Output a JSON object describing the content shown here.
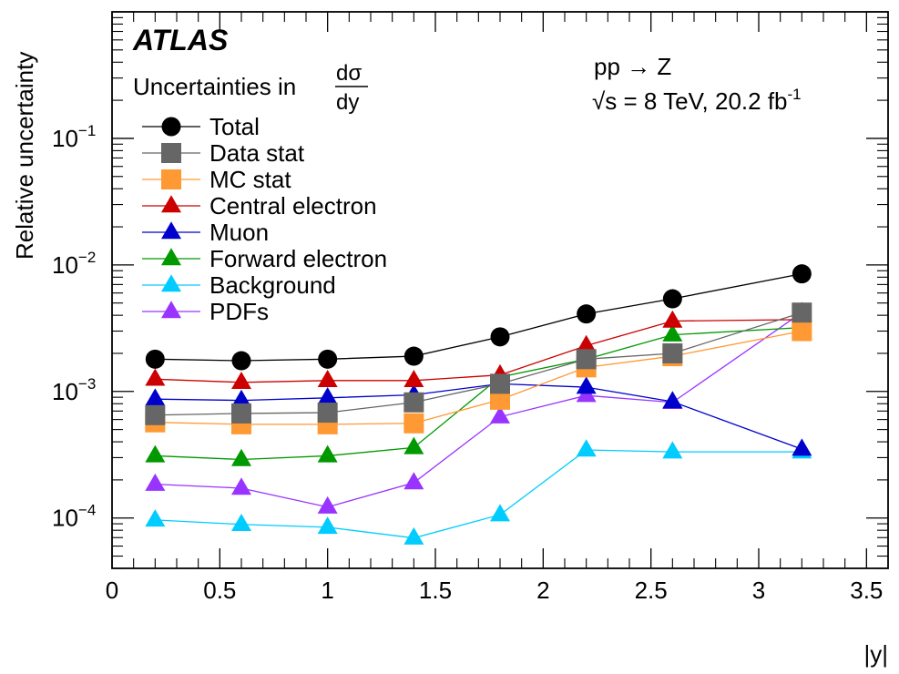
{
  "chart_data": {
    "type": "line",
    "experiment_label": "ATLAS",
    "subtitle_prefix": "Uncertainties in ",
    "subtitle_frac_num": "dσ",
    "subtitle_frac_den": "dy",
    "process_label": "pp → Z",
    "energy_label_sqrt": "√s",
    "energy_label_main": " = 8 TeV, 20.2 fb",
    "energy_label_sup": "-1",
    "ylabel": "Relative uncertainty",
    "xlabel": "|y|",
    "x_scale": "linear",
    "y_scale": "log",
    "xlim": [
      0,
      3.6
    ],
    "ylim": [
      4e-05,
      1.0
    ],
    "x_ticks": [
      0,
      0.5,
      1,
      1.5,
      2,
      2.5,
      3,
      3.5
    ],
    "x_tick_labels": [
      "0",
      "0.5",
      "1",
      "1.5",
      "2",
      "2.5",
      "3",
      "3.5"
    ],
    "y_ticks": [
      0.0001,
      0.001,
      0.01,
      0.1
    ],
    "y_tick_labels": [
      {
        "base": "10",
        "exp": "−4"
      },
      {
        "base": "10",
        "exp": "−3"
      },
      {
        "base": "10",
        "exp": "−2"
      },
      {
        "base": "10",
        "exp": "−1"
      }
    ],
    "grid": false,
    "legend_position": "top-left",
    "x": [
      0.2,
      0.6,
      1.0,
      1.4,
      1.8,
      2.2,
      2.6,
      3.2
    ],
    "series": [
      {
        "name": "Total",
        "marker": "circle",
        "color": "#000000",
        "line_color": "#000000",
        "values": [
          0.0018,
          0.00175,
          0.0018,
          0.0019,
          0.0027,
          0.0041,
          0.0054,
          0.0085
        ]
      },
      {
        "name": "Data stat",
        "marker": "square",
        "color": "#666666",
        "line_color": "#666666",
        "values": [
          0.00065,
          0.00067,
          0.00068,
          0.00082,
          0.00115,
          0.0018,
          0.002,
          0.0042
        ]
      },
      {
        "name": "MC stat",
        "marker": "square",
        "color": "#ff9933",
        "line_color": "#ff9933",
        "values": [
          0.00057,
          0.00055,
          0.00055,
          0.00056,
          0.00086,
          0.00155,
          0.0019,
          0.003
        ]
      },
      {
        "name": "Central electron",
        "marker": "triangle",
        "color": "#cc0000",
        "line_color": "#cc0000",
        "values": [
          0.00125,
          0.00118,
          0.00122,
          0.00122,
          0.00135,
          0.0023,
          0.0036,
          0.0037
        ]
      },
      {
        "name": "Muon",
        "marker": "triangle",
        "color": "#0000cc",
        "line_color": "#0000cc",
        "values": [
          0.00087,
          0.00085,
          0.00089,
          0.00094,
          0.00115,
          0.00108,
          0.00083,
          0.00035
        ]
      },
      {
        "name": "Forward electron",
        "marker": "triangle",
        "color": "#009900",
        "line_color": "#009900",
        "values": [
          0.00031,
          0.00029,
          0.00031,
          0.00036,
          0.0013,
          0.0018,
          0.0028,
          0.0032
        ]
      },
      {
        "name": "Background",
        "marker": "triangle",
        "color": "#00ccff",
        "line_color": "#00ccff",
        "values": [
          9.65e-05,
          8.9e-05,
          8.45e-05,
          6.95e-05,
          0.000106,
          0.000345,
          0.000333,
          0.000333
        ]
      },
      {
        "name": "PDFs",
        "marker": "triangle",
        "color": "#9933ff",
        "line_color": "#9933ff",
        "values": [
          0.000185,
          0.000172,
          0.000122,
          0.00019,
          0.00063,
          0.00093,
          0.00082,
          0.0042
        ]
      }
    ]
  }
}
